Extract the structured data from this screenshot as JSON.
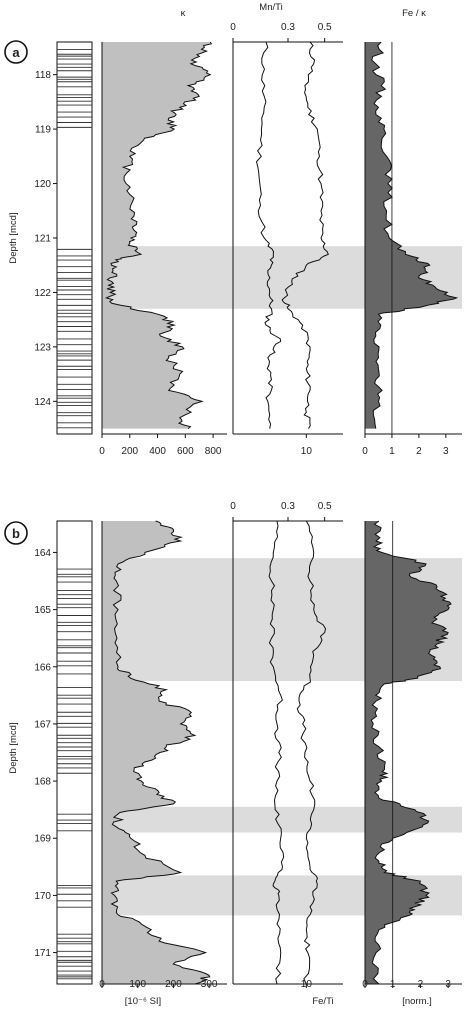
{
  "panels": [
    {
      "label": "a"
    },
    {
      "label": "b"
    }
  ],
  "headers": {
    "kappa_symbol": "κ",
    "mn_ti": "Mn/Ti",
    "fe_kappa": "Fe / κ",
    "depth_label": "Depth [mcd]"
  },
  "footers": {
    "kappa_unit": "[10⁻⁶ SI]",
    "fe_ti": "Fe/Ti",
    "norm": "[norm.]"
  },
  "colors": {
    "kappa_fill": "#c0c0c0",
    "fe_kappa_fill": "#666666",
    "shade_band": "#dcdcdc",
    "line": "#111111"
  },
  "chart_data": [
    {
      "type": "area",
      "panel": "a",
      "title": "",
      "ylabel": "Depth [mcd]",
      "depth_ticks": [
        118,
        119,
        120,
        121,
        122,
        123,
        124
      ],
      "depth_range": [
        117.4,
        124.6
      ],
      "shaded_intervals": [
        [
          121.15,
          122.3
        ]
      ],
      "lithology_bands": [
        [
          117.45,
          119.05
        ],
        [
          121.15,
          124.55
        ]
      ],
      "tracks": [
        {
          "name": "κ",
          "xlim": [
            0,
            900
          ],
          "x_ticks": [
            0,
            200,
            400,
            600,
            800
          ],
          "profile": [
            [
              117.4,
              780
            ],
            [
              117.6,
              720
            ],
            [
              117.8,
              640
            ],
            [
              118.0,
              780
            ],
            [
              118.2,
              620
            ],
            [
              118.4,
              700
            ],
            [
              118.6,
              560
            ],
            [
              118.8,
              480
            ],
            [
              119.0,
              520
            ],
            [
              119.2,
              300
            ],
            [
              119.5,
              200
            ],
            [
              119.8,
              180
            ],
            [
              120.2,
              200
            ],
            [
              120.6,
              230
            ],
            [
              120.9,
              250
            ],
            [
              121.1,
              200
            ],
            [
              121.3,
              280
            ],
            [
              121.4,
              100
            ],
            [
              121.6,
              80
            ],
            [
              121.8,
              70
            ],
            [
              122.0,
              60
            ],
            [
              122.2,
              70
            ],
            [
              122.4,
              400
            ],
            [
              122.6,
              520
            ],
            [
              122.8,
              420
            ],
            [
              123.0,
              580
            ],
            [
              123.2,
              480
            ],
            [
              123.5,
              560
            ],
            [
              123.8,
              480
            ],
            [
              124.0,
              720
            ],
            [
              124.3,
              560
            ],
            [
              124.5,
              620
            ]
          ]
        },
        {
          "name": "Mn/Ti",
          "xlim": [
            0,
            0.6
          ],
          "x_ticks": [
            0,
            0.3,
            0.5
          ],
          "profile": [
            [
              117.4,
              0.18
            ],
            [
              118.0,
              0.16
            ],
            [
              118.6,
              0.17
            ],
            [
              119.2,
              0.15
            ],
            [
              119.8,
              0.14
            ],
            [
              120.4,
              0.15
            ],
            [
              121.0,
              0.17
            ],
            [
              121.3,
              0.22
            ],
            [
              121.6,
              0.19
            ],
            [
              122.0,
              0.2
            ],
            [
              122.3,
              0.21
            ],
            [
              122.6,
              0.18
            ],
            [
              122.9,
              0.26
            ],
            [
              123.2,
              0.19
            ],
            [
              123.6,
              0.21
            ],
            [
              124.0,
              0.19
            ],
            [
              124.5,
              0.2
            ]
          ]
        },
        {
          "name": "Fe/Ti",
          "xlim": [
            0,
            15
          ],
          "x_ticks": [
            10
          ],
          "profile": [
            [
              117.4,
              10.5
            ],
            [
              117.8,
              11
            ],
            [
              118.2,
              9.8
            ],
            [
              118.6,
              10.2
            ],
            [
              119.0,
              11.5
            ],
            [
              119.5,
              11.8
            ],
            [
              120.0,
              12
            ],
            [
              120.5,
              12
            ],
            [
              121.0,
              12
            ],
            [
              121.3,
              13
            ],
            [
              121.5,
              10
            ],
            [
              121.8,
              8
            ],
            [
              122.1,
              7
            ],
            [
              122.3,
              7.5
            ],
            [
              122.6,
              9.5
            ],
            [
              123.0,
              10.5
            ],
            [
              123.4,
              10
            ],
            [
              123.8,
              10.5
            ],
            [
              124.2,
              10
            ],
            [
              124.5,
              10.3
            ]
          ]
        },
        {
          "name": "Fe / κ",
          "xlim": [
            0,
            3.6
          ],
          "x_ticks": [
            0,
            1,
            2,
            3
          ],
          "profile": [
            [
              117.4,
              0.6
            ],
            [
              117.8,
              0.4
            ],
            [
              118.2,
              0.6
            ],
            [
              118.6,
              0.5
            ],
            [
              119.0,
              0.7
            ],
            [
              119.5,
              0.8
            ],
            [
              120.0,
              0.85
            ],
            [
              120.5,
              0.8
            ],
            [
              121.0,
              0.9
            ],
            [
              121.3,
              1.5
            ],
            [
              121.5,
              2.4
            ],
            [
              121.7,
              2.0
            ],
            [
              121.9,
              2.6
            ],
            [
              122.1,
              3.4
            ],
            [
              122.25,
              2.2
            ],
            [
              122.4,
              0.5
            ],
            [
              122.8,
              0.4
            ],
            [
              123.2,
              0.5
            ],
            [
              123.6,
              0.4
            ],
            [
              124.0,
              0.5
            ],
            [
              124.5,
              0.4
            ]
          ]
        }
      ]
    },
    {
      "type": "area",
      "panel": "b",
      "title": "",
      "ylabel": "Depth [mcd]",
      "depth_ticks": [
        164,
        165,
        166,
        167,
        168,
        169,
        170,
        171
      ],
      "depth_range": [
        163.45,
        171.55
      ],
      "shaded_intervals": [
        [
          164.1,
          166.25
        ],
        [
          168.45,
          168.9
        ],
        [
          169.65,
          170.35
        ]
      ],
      "lithology_bands": [
        [
          164.25,
          166.15
        ],
        [
          166.3,
          167.9
        ],
        [
          168.45,
          168.9
        ],
        [
          169.7,
          170.3
        ],
        [
          170.6,
          171.5
        ]
      ],
      "tracks": [
        {
          "name": "κ",
          "xlim": [
            0,
            350
          ],
          "x_ticks": [
            0,
            100,
            200,
            300
          ],
          "profile": [
            [
              163.45,
              150
            ],
            [
              163.6,
              200
            ],
            [
              163.8,
              220
            ],
            [
              164.0,
              120
            ],
            [
              164.2,
              45
            ],
            [
              164.5,
              40
            ],
            [
              165.0,
              45
            ],
            [
              165.5,
              42
            ],
            [
              166.0,
              45
            ],
            [
              166.2,
              80
            ],
            [
              166.4,
              180
            ],
            [
              166.6,
              160
            ],
            [
              166.8,
              250
            ],
            [
              167.0,
              220
            ],
            [
              167.2,
              260
            ],
            [
              167.4,
              180
            ],
            [
              167.6,
              150
            ],
            [
              167.8,
              90
            ],
            [
              168.0,
              110
            ],
            [
              168.2,
              160
            ],
            [
              168.4,
              200
            ],
            [
              168.55,
              50
            ],
            [
              168.8,
              40
            ],
            [
              169.0,
              80
            ],
            [
              169.3,
              120
            ],
            [
              169.6,
              220
            ],
            [
              169.75,
              40
            ],
            [
              170.0,
              35
            ],
            [
              170.3,
              40
            ],
            [
              170.5,
              110
            ],
            [
              170.8,
              160
            ],
            [
              171.0,
              290
            ],
            [
              171.2,
              200
            ],
            [
              171.4,
              300
            ],
            [
              171.55,
              260
            ]
          ]
        },
        {
          "name": "Mn/Ti",
          "xlim": [
            0,
            0.6
          ],
          "x_ticks": [
            0,
            0.3,
            0.5
          ],
          "profile": [
            [
              163.45,
              0.24
            ],
            [
              164.0,
              0.22
            ],
            [
              164.5,
              0.21
            ],
            [
              165.0,
              0.22
            ],
            [
              165.5,
              0.21
            ],
            [
              166.0,
              0.22
            ],
            [
              166.5,
              0.26
            ],
            [
              167.0,
              0.24
            ],
            [
              167.5,
              0.25
            ],
            [
              168.0,
              0.24
            ],
            [
              168.5,
              0.23
            ],
            [
              169.0,
              0.26
            ],
            [
              169.5,
              0.27
            ],
            [
              169.8,
              0.22
            ],
            [
              170.0,
              0.25
            ],
            [
              170.5,
              0.24
            ],
            [
              171.0,
              0.26
            ],
            [
              171.55,
              0.24
            ]
          ]
        },
        {
          "name": "Fe/Ti",
          "xlim": [
            0,
            15
          ],
          "x_ticks": [
            10
          ],
          "profile": [
            [
              163.45,
              10
            ],
            [
              164.0,
              11
            ],
            [
              164.5,
              10.5
            ],
            [
              165.0,
              11
            ],
            [
              165.4,
              12.5
            ],
            [
              165.8,
              11
            ],
            [
              166.2,
              10.5
            ],
            [
              166.6,
              9
            ],
            [
              167.0,
              9.5
            ],
            [
              167.5,
              9.8
            ],
            [
              168.0,
              10.5
            ],
            [
              168.5,
              11
            ],
            [
              169.0,
              10
            ],
            [
              169.5,
              10.5
            ],
            [
              169.8,
              11.5
            ],
            [
              170.2,
              10.5
            ],
            [
              170.6,
              10
            ],
            [
              171.0,
              10.2
            ],
            [
              171.55,
              10
            ]
          ]
        },
        {
          "name": "Fe / κ",
          "xlim": [
            0,
            3.5
          ],
          "x_ticks": [
            0,
            1,
            2,
            3
          ],
          "profile": [
            [
              163.45,
              0.5
            ],
            [
              163.8,
              0.4
            ],
            [
              164.0,
              0.6
            ],
            [
              164.2,
              2.2
            ],
            [
              164.4,
              1.6
            ],
            [
              164.6,
              2.6
            ],
            [
              164.8,
              2.9
            ],
            [
              165.0,
              3.0
            ],
            [
              165.2,
              2.5
            ],
            [
              165.4,
              3.0
            ],
            [
              165.6,
              2.6
            ],
            [
              165.8,
              2.4
            ],
            [
              166.0,
              2.7
            ],
            [
              166.2,
              1.9
            ],
            [
              166.3,
              0.7
            ],
            [
              166.6,
              0.4
            ],
            [
              167.0,
              0.3
            ],
            [
              167.4,
              0.5
            ],
            [
              167.8,
              0.7
            ],
            [
              168.0,
              0.6
            ],
            [
              168.3,
              0.5
            ],
            [
              168.5,
              1.8
            ],
            [
              168.7,
              2.3
            ],
            [
              168.9,
              1.5
            ],
            [
              169.1,
              0.6
            ],
            [
              169.4,
              0.5
            ],
            [
              169.6,
              0.7
            ],
            [
              169.75,
              2.0
            ],
            [
              170.0,
              2.2
            ],
            [
              170.2,
              1.8
            ],
            [
              170.35,
              1.6
            ],
            [
              170.6,
              0.5
            ],
            [
              171.0,
              0.4
            ],
            [
              171.55,
              0.5
            ]
          ]
        }
      ]
    }
  ]
}
